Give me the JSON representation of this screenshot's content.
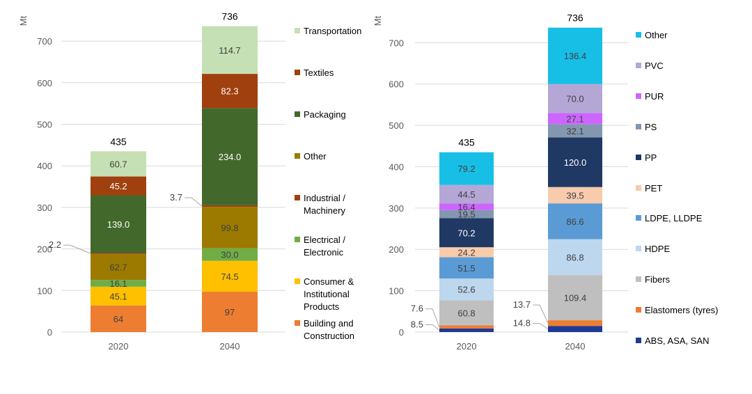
{
  "chart_data": [
    {
      "type": "bar",
      "stacked": true,
      "title": "",
      "xlabel": "",
      "ylabel": "Mt",
      "ylim": [
        0,
        750
      ],
      "yticks": [
        0,
        100,
        200,
        300,
        400,
        500,
        600,
        700
      ],
      "categories": [
        "2020",
        "2040"
      ],
      "totals": [
        "435",
        "736"
      ],
      "series": [
        {
          "name": "Building and Construction",
          "color": "#ED7D31",
          "values": [
            64,
            97
          ],
          "labels": [
            "64",
            "97"
          ]
        },
        {
          "name": "Consumer & Institutional Products",
          "color": "#FFC000",
          "values": [
            45.1,
            74.5
          ],
          "labels": [
            "45.1",
            "74.5"
          ]
        },
        {
          "name": "Electrical / Electronic",
          "color": "#70AD47",
          "values": [
            16.1,
            30.0
          ],
          "labels": [
            "16.1",
            "30.0"
          ]
        },
        {
          "name": "Other",
          "color": "#9C7A00",
          "values": [
            62.7,
            99.8
          ],
          "labels": [
            "62.7",
            "99.8"
          ]
        },
        {
          "name": "Industrial / Machinery",
          "color": "#A0400E",
          "values": [
            2.2,
            3.7
          ],
          "labels": [
            "",
            ""
          ]
        },
        {
          "name": "Packaging",
          "color": "#43682B",
          "values": [
            139.0,
            234.0
          ],
          "labels": [
            "139.0",
            "234.0"
          ]
        },
        {
          "name": "Textiles",
          "color": "#A0400E",
          "values": [
            45.2,
            82.3
          ],
          "labels": [
            "45.2",
            "82.3"
          ]
        },
        {
          "name": "Transportation",
          "color": "#C5E0B4",
          "values": [
            60.7,
            114.7
          ],
          "labels": [
            "60.7",
            "114.7"
          ]
        }
      ],
      "callouts": [
        {
          "text": "2.2",
          "category": "2020",
          "series": "Industrial / Machinery"
        },
        {
          "text": "3.7",
          "category": "2040",
          "series": "Industrial / Machinery"
        }
      ],
      "legend": [
        {
          "label": [
            "Transportation"
          ],
          "color": "#C5E0B4"
        },
        {
          "label": [
            "Textiles"
          ],
          "color": "#A0400E"
        },
        {
          "label": [
            "Packaging"
          ],
          "color": "#43682B"
        },
        {
          "label": [
            "Other"
          ],
          "color": "#9C7A00"
        },
        {
          "label": [
            "Industrial /",
            "Machinery"
          ],
          "color": "#A0400E"
        },
        {
          "label": [
            "Electrical /",
            "Electronic"
          ],
          "color": "#70AD47"
        },
        {
          "label": [
            "Consumer &",
            "Institutional",
            "Products"
          ],
          "color": "#FFC000"
        },
        {
          "label": [
            "Building and",
            "Construction"
          ],
          "color": "#ED7D31"
        }
      ]
    },
    {
      "type": "bar",
      "stacked": true,
      "title": "",
      "xlabel": "",
      "ylabel": "Mt",
      "ylim": [
        0,
        750
      ],
      "yticks": [
        0,
        100,
        200,
        300,
        400,
        500,
        600,
        700
      ],
      "categories": [
        "2020",
        "2040"
      ],
      "totals": [
        "435",
        "736"
      ],
      "series": [
        {
          "name": "ABS, ASA, SAN",
          "color": "#1F3A93",
          "values": [
            8.5,
            14.8
          ],
          "labels": [
            "",
            ""
          ]
        },
        {
          "name": "Elastomers (tyres)",
          "color": "#ED7D31",
          "values": [
            7.6,
            13.7
          ],
          "labels": [
            "",
            ""
          ]
        },
        {
          "name": "Fibers",
          "color": "#BFBFBF",
          "values": [
            60.8,
            109.4
          ],
          "labels": [
            "60.8",
            "109.4"
          ]
        },
        {
          "name": "HDPE",
          "color": "#BDD7EE",
          "values": [
            52.6,
            86.8
          ],
          "labels": [
            "52.6",
            "86.8"
          ]
        },
        {
          "name": "LDPE, LLDPE",
          "color": "#5B9BD5",
          "values": [
            51.5,
            86.6
          ],
          "labels": [
            "51.5",
            "86.6"
          ]
        },
        {
          "name": "PET",
          "color": "#F8CBAD",
          "values": [
            24.2,
            39.5
          ],
          "labels": [
            "24.2",
            "39.5"
          ]
        },
        {
          "name": "PP",
          "color": "#203864",
          "values": [
            70.2,
            120.0
          ],
          "labels": [
            "70.2",
            "120.0"
          ]
        },
        {
          "name": "PS",
          "color": "#8497B0",
          "values": [
            19.5,
            32.1
          ],
          "labels": [
            "19.5",
            "32.1"
          ]
        },
        {
          "name": "PUR",
          "color": "#CC66FF",
          "values": [
            16.4,
            27.1
          ],
          "labels": [
            "16.4",
            "27.1"
          ]
        },
        {
          "name": "PVC",
          "color": "#B4A7D6",
          "values": [
            44.5,
            70.0
          ],
          "labels": [
            "44.5",
            "70.0"
          ]
        },
        {
          "name": "Other",
          "color": "#17BFE6",
          "values": [
            79.2,
            136.4
          ],
          "labels": [
            "79.2",
            "136.4"
          ]
        }
      ],
      "callouts": [
        {
          "text": "7.6",
          "category": "2020",
          "series": "Elastomers (tyres)"
        },
        {
          "text": "8.5",
          "category": "2020",
          "series": "ABS, ASA, SAN"
        },
        {
          "text": "13.7",
          "category": "2040",
          "series": "Elastomers (tyres)"
        },
        {
          "text": "14.8",
          "category": "2040",
          "series": "ABS, ASA, SAN"
        }
      ],
      "legend": [
        {
          "label": [
            "Other"
          ],
          "color": "#17BFE6"
        },
        {
          "label": [
            "PVC"
          ],
          "color": "#B4A7D6"
        },
        {
          "label": [
            "PUR"
          ],
          "color": "#CC66FF"
        },
        {
          "label": [
            "PS"
          ],
          "color": "#8497B0"
        },
        {
          "label": [
            "PP"
          ],
          "color": "#203864"
        },
        {
          "label": [
            "PET"
          ],
          "color": "#F8CBAD"
        },
        {
          "label": [
            "LDPE, LLDPE"
          ],
          "color": "#5B9BD5"
        },
        {
          "label": [
            "HDPE"
          ],
          "color": "#BDD7EE"
        },
        {
          "label": [
            "Fibers"
          ],
          "color": "#BFBFBF"
        },
        {
          "label": [
            "Elastomers (tyres)"
          ],
          "color": "#ED7D31"
        },
        {
          "label": [
            "ABS, ASA, SAN"
          ],
          "color": "#1F3A93"
        }
      ]
    }
  ]
}
